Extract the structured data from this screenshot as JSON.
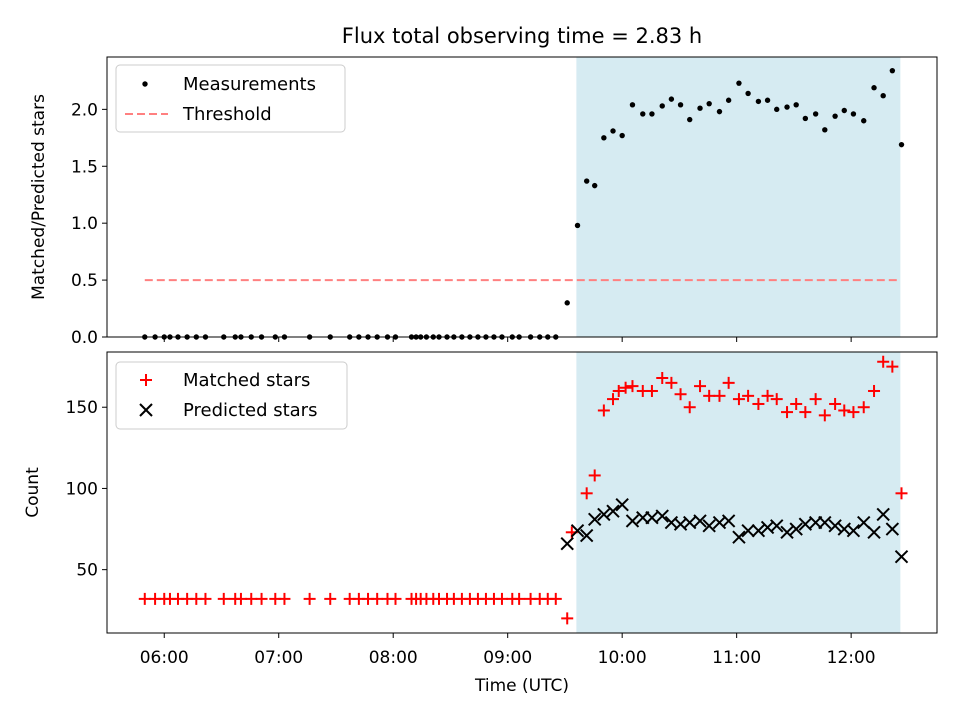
{
  "chart_data": [
    {
      "type": "scatter",
      "title": "Flux total observing time = 2.83 h",
      "xlabel": "",
      "ylabel": "Matched/Predicted stars",
      "xlim": [
        5.5,
        12.75
      ],
      "ylim": [
        0.0,
        2.46
      ],
      "yticks": [
        0.0,
        0.5,
        1.0,
        1.5,
        2.0
      ],
      "ytick_labels": [
        "0.0",
        "0.5",
        "1.0",
        "1.5",
        "2.0"
      ],
      "xticks": [
        6,
        7,
        8,
        9,
        10,
        11,
        12
      ],
      "highlight_span": [
        9.6,
        12.43
      ],
      "highlight_color": "#add8e6",
      "legend_position": "upper-left",
      "threshold": {
        "name": "Threshold",
        "y": 0.5,
        "x_range": [
          5.83,
          12.43
        ],
        "color": "#ff8080"
      },
      "series": [
        {
          "name": "Measurements",
          "marker": "dot",
          "color": "#000000",
          "x": [
            5.83,
            5.92,
            6.0,
            6.05,
            6.12,
            6.2,
            6.28,
            6.36,
            6.52,
            6.62,
            6.67,
            6.76,
            6.85,
            6.97,
            7.05,
            7.27,
            7.45,
            7.62,
            7.7,
            7.78,
            7.86,
            7.95,
            8.02,
            8.16,
            8.2,
            8.24,
            8.29,
            8.35,
            8.4,
            8.47,
            8.53,
            8.6,
            8.67,
            8.74,
            8.81,
            8.88,
            8.95,
            9.04,
            9.1,
            9.2,
            9.28,
            9.35,
            9.42,
            9.52,
            9.61,
            9.69,
            9.76,
            9.84,
            9.92,
            10.0,
            10.09,
            10.18,
            10.26,
            10.35,
            10.43,
            10.51,
            10.59,
            10.68,
            10.76,
            10.85,
            10.93,
            11.02,
            11.1,
            11.19,
            11.27,
            11.35,
            11.44,
            11.52,
            11.6,
            11.69,
            11.77,
            11.86,
            11.94,
            12.02,
            12.11,
            12.2,
            12.28,
            12.36,
            12.44
          ],
          "y": [
            0,
            0,
            0,
            0,
            0,
            0,
            0,
            0,
            0,
            0,
            0,
            0,
            0,
            0,
            0,
            0,
            0,
            0,
            0,
            0,
            0,
            0,
            0,
            0,
            0,
            0,
            0,
            0,
            0,
            0,
            0,
            0,
            0,
            0,
            0,
            0,
            0,
            0,
            0,
            0,
            0,
            0,
            0,
            0.3,
            0.98,
            1.37,
            1.33,
            1.75,
            1.81,
            1.77,
            2.04,
            1.96,
            1.96,
            2.03,
            2.09,
            2.04,
            1.91,
            2.01,
            2.05,
            1.98,
            2.08,
            2.23,
            2.14,
            2.07,
            2.08,
            2.0,
            2.02,
            2.04,
            1.92,
            1.96,
            1.82,
            1.94,
            1.99,
            1.96,
            1.9,
            2.19,
            2.12,
            2.34,
            1.69
          ]
        }
      ]
    },
    {
      "type": "scatter",
      "title": "",
      "xlabel": "Time (UTC)",
      "ylabel": "Count",
      "xlim": [
        5.5,
        12.75
      ],
      "ylim": [
        11,
        184
      ],
      "yticks": [
        50,
        100,
        150
      ],
      "ytick_labels": [
        "50",
        "100",
        "150"
      ],
      "xticks": [
        6,
        7,
        8,
        9,
        10,
        11,
        12
      ],
      "xtick_labels": [
        "06:00",
        "07:00",
        "08:00",
        "09:00",
        "10:00",
        "11:00",
        "12:00"
      ],
      "highlight_span": [
        9.6,
        12.43
      ],
      "highlight_color": "#add8e6",
      "legend_position": "upper-left",
      "series": [
        {
          "name": "Matched stars",
          "marker": "plus",
          "color": "#ff0000",
          "x": [
            5.83,
            5.92,
            6.0,
            6.05,
            6.12,
            6.2,
            6.28,
            6.36,
            6.52,
            6.62,
            6.67,
            6.76,
            6.85,
            6.97,
            7.05,
            7.27,
            7.45,
            7.62,
            7.7,
            7.78,
            7.86,
            7.95,
            8.02,
            8.16,
            8.2,
            8.24,
            8.29,
            8.35,
            8.4,
            8.47,
            8.53,
            8.6,
            8.67,
            8.74,
            8.81,
            8.88,
            8.95,
            9.04,
            9.1,
            9.2,
            9.28,
            9.35,
            9.42,
            9.52,
            9.56,
            9.69,
            9.76,
            9.84,
            9.92,
            9.97,
            10.03,
            10.09,
            10.18,
            10.26,
            10.35,
            10.43,
            10.51,
            10.59,
            10.68,
            10.76,
            10.85,
            10.93,
            11.02,
            11.1,
            11.19,
            11.27,
            11.35,
            11.44,
            11.52,
            11.6,
            11.69,
            11.77,
            11.86,
            11.94,
            12.02,
            12.11,
            12.2,
            12.28,
            12.36,
            12.44
          ],
          "y": [
            32,
            32,
            32,
            32,
            32,
            32,
            32,
            32,
            32,
            32,
            32,
            32,
            32,
            32,
            32,
            32,
            32,
            32,
            32,
            32,
            32,
            32,
            32,
            32,
            32,
            32,
            32,
            32,
            32,
            32,
            32,
            32,
            32,
            32,
            32,
            32,
            32,
            32,
            32,
            32,
            32,
            32,
            32,
            20,
            73,
            97,
            108,
            148,
            155,
            160,
            162,
            163,
            160,
            160,
            168,
            165,
            158,
            150,
            163,
            157,
            157,
            165,
            155,
            157,
            152,
            157,
            155,
            147,
            152,
            147,
            155,
            145,
            152,
            148,
            147,
            150,
            160,
            178,
            175,
            97
          ]
        },
        {
          "name": "Predicted stars",
          "marker": "x",
          "color": "#000000",
          "x": [
            9.52,
            9.61,
            9.69,
            9.76,
            9.84,
            9.92,
            10.0,
            10.09,
            10.18,
            10.26,
            10.35,
            10.43,
            10.51,
            10.59,
            10.68,
            10.76,
            10.85,
            10.93,
            11.02,
            11.1,
            11.19,
            11.27,
            11.35,
            11.44,
            11.52,
            11.6,
            11.69,
            11.77,
            11.86,
            11.94,
            12.02,
            12.11,
            12.2,
            12.28,
            12.36,
            12.44
          ],
          "y": [
            66,
            74,
            71,
            81,
            84,
            86,
            90,
            80,
            82,
            82,
            83,
            79,
            78,
            79,
            80,
            77,
            79,
            80,
            70,
            74,
            74,
            76,
            77,
            73,
            75,
            78,
            79,
            79,
            77,
            75,
            74,
            79,
            73,
            84,
            75,
            58
          ]
        }
      ]
    }
  ]
}
